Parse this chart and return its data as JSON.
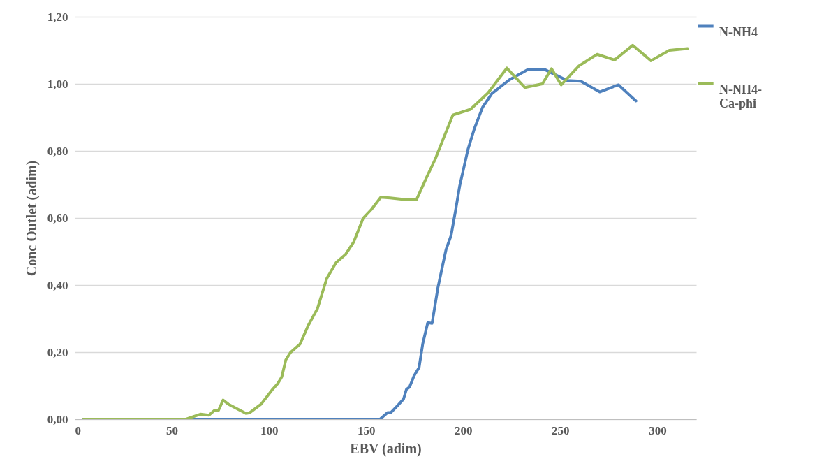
{
  "chart_data": {
    "type": "line",
    "xlabel": "EBV (adim)",
    "ylabel": "Conc Outlet (adim)",
    "xlim": [
      0,
      320
    ],
    "xticks": [
      0,
      50,
      100,
      150,
      200,
      250,
      300
    ],
    "ylim": [
      0,
      1.2
    ],
    "yticks": [
      {
        "value": 0,
        "label": "0,00"
      },
      {
        "value": 0.2,
        "label": "0,20"
      },
      {
        "value": 0.4,
        "label": "0,40"
      },
      {
        "value": 0.6,
        "label": "0,60"
      },
      {
        "value": 0.8,
        "label": "0,80"
      },
      {
        "value": 1.0,
        "label": "1,00"
      },
      {
        "value": 1.2,
        "label": "1,20"
      }
    ],
    "grid": "y",
    "legend": "right",
    "line_style": "solid",
    "marker": "none",
    "series": [
      {
        "name": "N-NH4",
        "color": "#4f81bd",
        "x": [
          4.3,
          157.2,
          161.1,
          162.8,
          166.3,
          169.3,
          170.8,
          172.4,
          174.7,
          177.3,
          179.2,
          181.8,
          184,
          187,
          189.6,
          191.2,
          193.8,
          196,
          198.2,
          202.5,
          205.7,
          210,
          214.8,
          223.8,
          233.5,
          241.9,
          253.6,
          260.6,
          270.3,
          280,
          289
        ],
        "values": [
          0,
          0,
          0.02,
          0.02,
          0.041,
          0.06,
          0.089,
          0.096,
          0.129,
          0.154,
          0.225,
          0.288,
          0.286,
          0.392,
          0.463,
          0.506,
          0.548,
          0.619,
          0.695,
          0.805,
          0.865,
          0.93,
          0.971,
          1.012,
          1.043,
          1.043,
          1.01,
          1.008,
          0.976,
          0.997,
          0.949
        ]
      },
      {
        "name": "N-NH4-Ca-phi",
        "color": "#9bbb59",
        "x": [
          4.3,
          57.3,
          64.7,
          69.1,
          71.9,
          74,
          76.4,
          79.1,
          88.2,
          90,
          96,
          102,
          104.5,
          106.6,
          108.7,
          111.1,
          116,
          120.2,
          125,
          129.8,
          134.6,
          139.4,
          143.7,
          148.5,
          152.7,
          157.6,
          162.4,
          171.4,
          176,
          181.1,
          185.6,
          190.2,
          194.7,
          203.8,
          212.8,
          222.5,
          231.8,
          240.8,
          245.5,
          250.5,
          259.7,
          269,
          278,
          287.3,
          296.7,
          306.2,
          315.6
        ],
        "values": [
          0,
          0,
          0.015,
          0.012,
          0.026,
          0.026,
          0.057,
          0.045,
          0.017,
          0.019,
          0.045,
          0.09,
          0.106,
          0.126,
          0.177,
          0.199,
          0.224,
          0.279,
          0.33,
          0.42,
          0.467,
          0.491,
          0.529,
          0.599,
          0.625,
          0.662,
          0.66,
          0.654,
          0.655,
          0.72,
          0.775,
          0.842,
          0.907,
          0.924,
          0.973,
          1.047,
          0.989,
          1.0,
          1.045,
          0.997,
          1.054,
          1.088,
          1.071,
          1.115,
          1.069,
          1.1,
          1.105
        ]
      }
    ]
  }
}
